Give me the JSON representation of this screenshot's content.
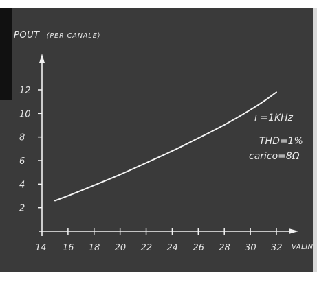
{
  "chart_data": {
    "type": "line",
    "title": "",
    "ylabel": {
      "main": "POUT",
      "sub": "(PER CANALE)"
    },
    "xlabel": "VALIN",
    "x_ticks": [
      14,
      16,
      18,
      20,
      22,
      24,
      26,
      28,
      30,
      32
    ],
    "y_ticks": [
      2,
      4,
      6,
      8,
      10,
      12
    ],
    "xlim": [
      14,
      32
    ],
    "ylim": [
      0,
      12
    ],
    "grid": false,
    "annotations": [
      "ı =1KHz",
      "THD=1%",
      "carico=8Ω"
    ],
    "series": [
      {
        "x": [
          15,
          16,
          18,
          20,
          22,
          24,
          26,
          28,
          30,
          31,
          32
        ],
        "y": [
          2.6,
          3.0,
          3.9,
          4.8,
          5.8,
          6.8,
          7.9,
          9.0,
          10.3,
          11.0,
          11.8
        ]
      }
    ]
  }
}
